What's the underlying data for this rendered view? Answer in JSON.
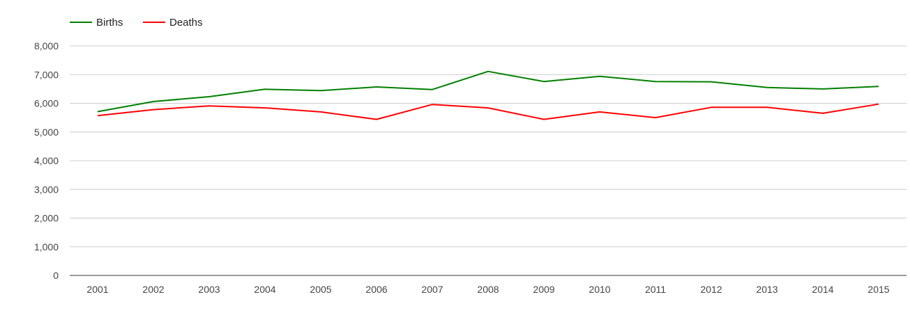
{
  "chart_data": {
    "type": "line",
    "title": "",
    "xlabel": "",
    "ylabel": "",
    "categories": [
      "2001",
      "2002",
      "2003",
      "2004",
      "2005",
      "2006",
      "2007",
      "2008",
      "2009",
      "2010",
      "2011",
      "2012",
      "2013",
      "2014",
      "2015"
    ],
    "ylim": [
      0,
      8000
    ],
    "yticks": [
      0,
      1000,
      2000,
      3000,
      4000,
      5000,
      6000,
      7000,
      8000
    ],
    "ytick_labels": [
      "0",
      "1,000",
      "2,000",
      "3,000",
      "4,000",
      "5,000",
      "6,000",
      "7,000",
      "8,000"
    ],
    "grid": true,
    "legend_position": "top-left",
    "series": [
      {
        "name": "Births",
        "color": "#008000",
        "values": [
          5710,
          6060,
          6230,
          6490,
          6440,
          6570,
          6480,
          7110,
          6760,
          6940,
          6760,
          6750,
          6550,
          6500,
          6590
        ]
      },
      {
        "name": "Deaths",
        "color": "#ff0000",
        "values": [
          5570,
          5780,
          5910,
          5840,
          5700,
          5440,
          5960,
          5840,
          5440,
          5700,
          5500,
          5860,
          5860,
          5650,
          5970
        ]
      }
    ]
  }
}
